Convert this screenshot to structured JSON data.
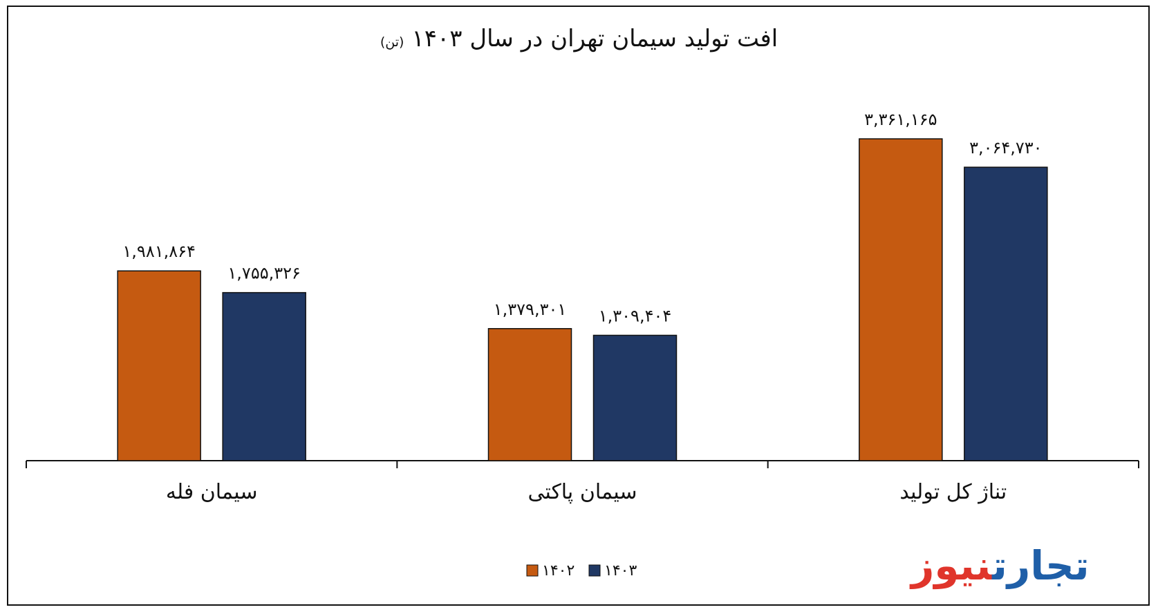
{
  "chart_data": {
    "type": "bar",
    "title": "افت تولید سیمان تهران در سال ۱۴۰۳",
    "unit": "(تن)",
    "categories": [
      "سیمان فله",
      "سیمان پاکتی",
      "تناژ کل تولید"
    ],
    "series": [
      {
        "name": "۱۴۰۲",
        "color": "#c55a11",
        "values": [
          1981864,
          1379301,
          3361165
        ],
        "labels": [
          "۱,۹۸۱,۸۶۴",
          "۱,۳۷۹,۳۰۱",
          "۳,۳۶۱,۱۶۵"
        ]
      },
      {
        "name": "۱۴۰۳",
        "color": "#203864",
        "values": [
          1755326,
          1309404,
          3064730
        ],
        "labels": [
          "۱,۷۵۵,۳۲۶",
          "۱,۳۰۹,۴۰۴",
          "۳,۰۶۴,۷۳۰"
        ]
      }
    ],
    "ylim": [
      0,
      3900000
    ],
    "grid": false,
    "legend_position": "bottom"
  },
  "brand": {
    "part1": "تجارت",
    "part2": "نیوز"
  }
}
